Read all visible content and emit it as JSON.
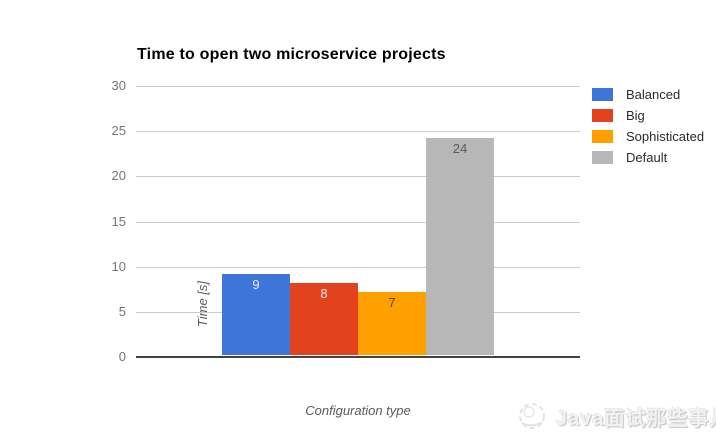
{
  "chart_data": {
    "type": "bar",
    "title": "Time to open two microservice projects",
    "xlabel": "Configuration type",
    "ylabel": "Time [s]",
    "ylim": [
      0,
      30
    ],
    "yticks": [
      0,
      5,
      10,
      15,
      20,
      25,
      30
    ],
    "grid": true,
    "legend_position": "right",
    "categories": [
      "Balanced",
      "Big",
      "Sophisticated",
      "Default"
    ],
    "values": [
      9,
      8,
      7,
      24
    ],
    "series_colors": [
      "#3d76d8",
      "#e2431e",
      "#ff9f00",
      "#b7b7b7"
    ],
    "value_label_colors": [
      "#ededed",
      "#ededed",
      "#5b4a17",
      "#5a5a5a"
    ],
    "gridline_color": "#cccccc",
    "baseline_color": "#424242",
    "tick_label_color": "#757575"
  },
  "watermark": {
    "icon": "wechat-account-logo-icon",
    "text": "Java面试那些事儿"
  }
}
